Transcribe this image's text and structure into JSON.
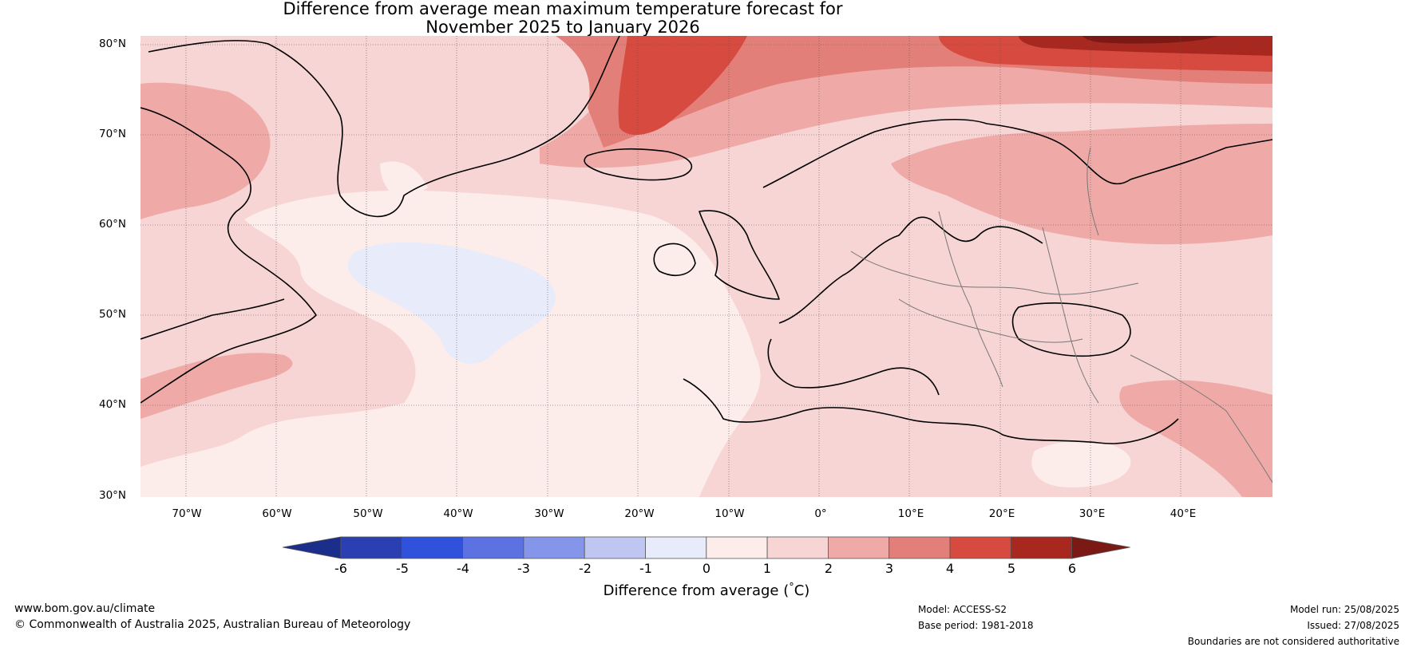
{
  "title": {
    "line1": "Difference from average mean maximum temperature forecast for",
    "line2": "November 2025 to January 2026"
  },
  "map": {
    "lat_labels": [
      "80°N",
      "70°N",
      "60°N",
      "50°N",
      "40°N",
      "30°N"
    ],
    "lon_labels": [
      "70°W",
      "60°W",
      "50°W",
      "40°W",
      "30°W",
      "20°W",
      "10°W",
      "0°",
      "10°E",
      "20°E",
      "30°E",
      "40°E"
    ],
    "lat_range": [
      30,
      80
    ],
    "lon_range": [
      -75,
      50
    ]
  },
  "colorbar": {
    "title": "Difference from average (",
    "title_unit": "C)",
    "title_deg": "°",
    "ticks": [
      "-6",
      "-5",
      "-4",
      "-3",
      "-2",
      "-1",
      "0",
      "1",
      "2",
      "3",
      "4",
      "5",
      "6"
    ],
    "colors": [
      "#1c2e8c",
      "#2a3fb2",
      "#3051dc",
      "#5c72e3",
      "#8596ea",
      "#bfc6f2",
      "#e8ebfa",
      "#fcecea",
      "#f6d5d4",
      "#efaaa8",
      "#e37f79",
      "#d74a40",
      "#a8281f",
      "#7b1a14"
    ]
  },
  "footer": {
    "url": "www.bom.gov.au/climate",
    "copyright": "© Commonwealth of Australia 2025, Australian Bureau of Meteorology",
    "model": "Model: ACCESS-S2",
    "base_period": "Base period: 1981-2018",
    "model_run": "Model run: 25/08/2025",
    "issued": "Issued: 27/08/2025",
    "disclaimer": "Boundaries are not considered authoritative"
  }
}
